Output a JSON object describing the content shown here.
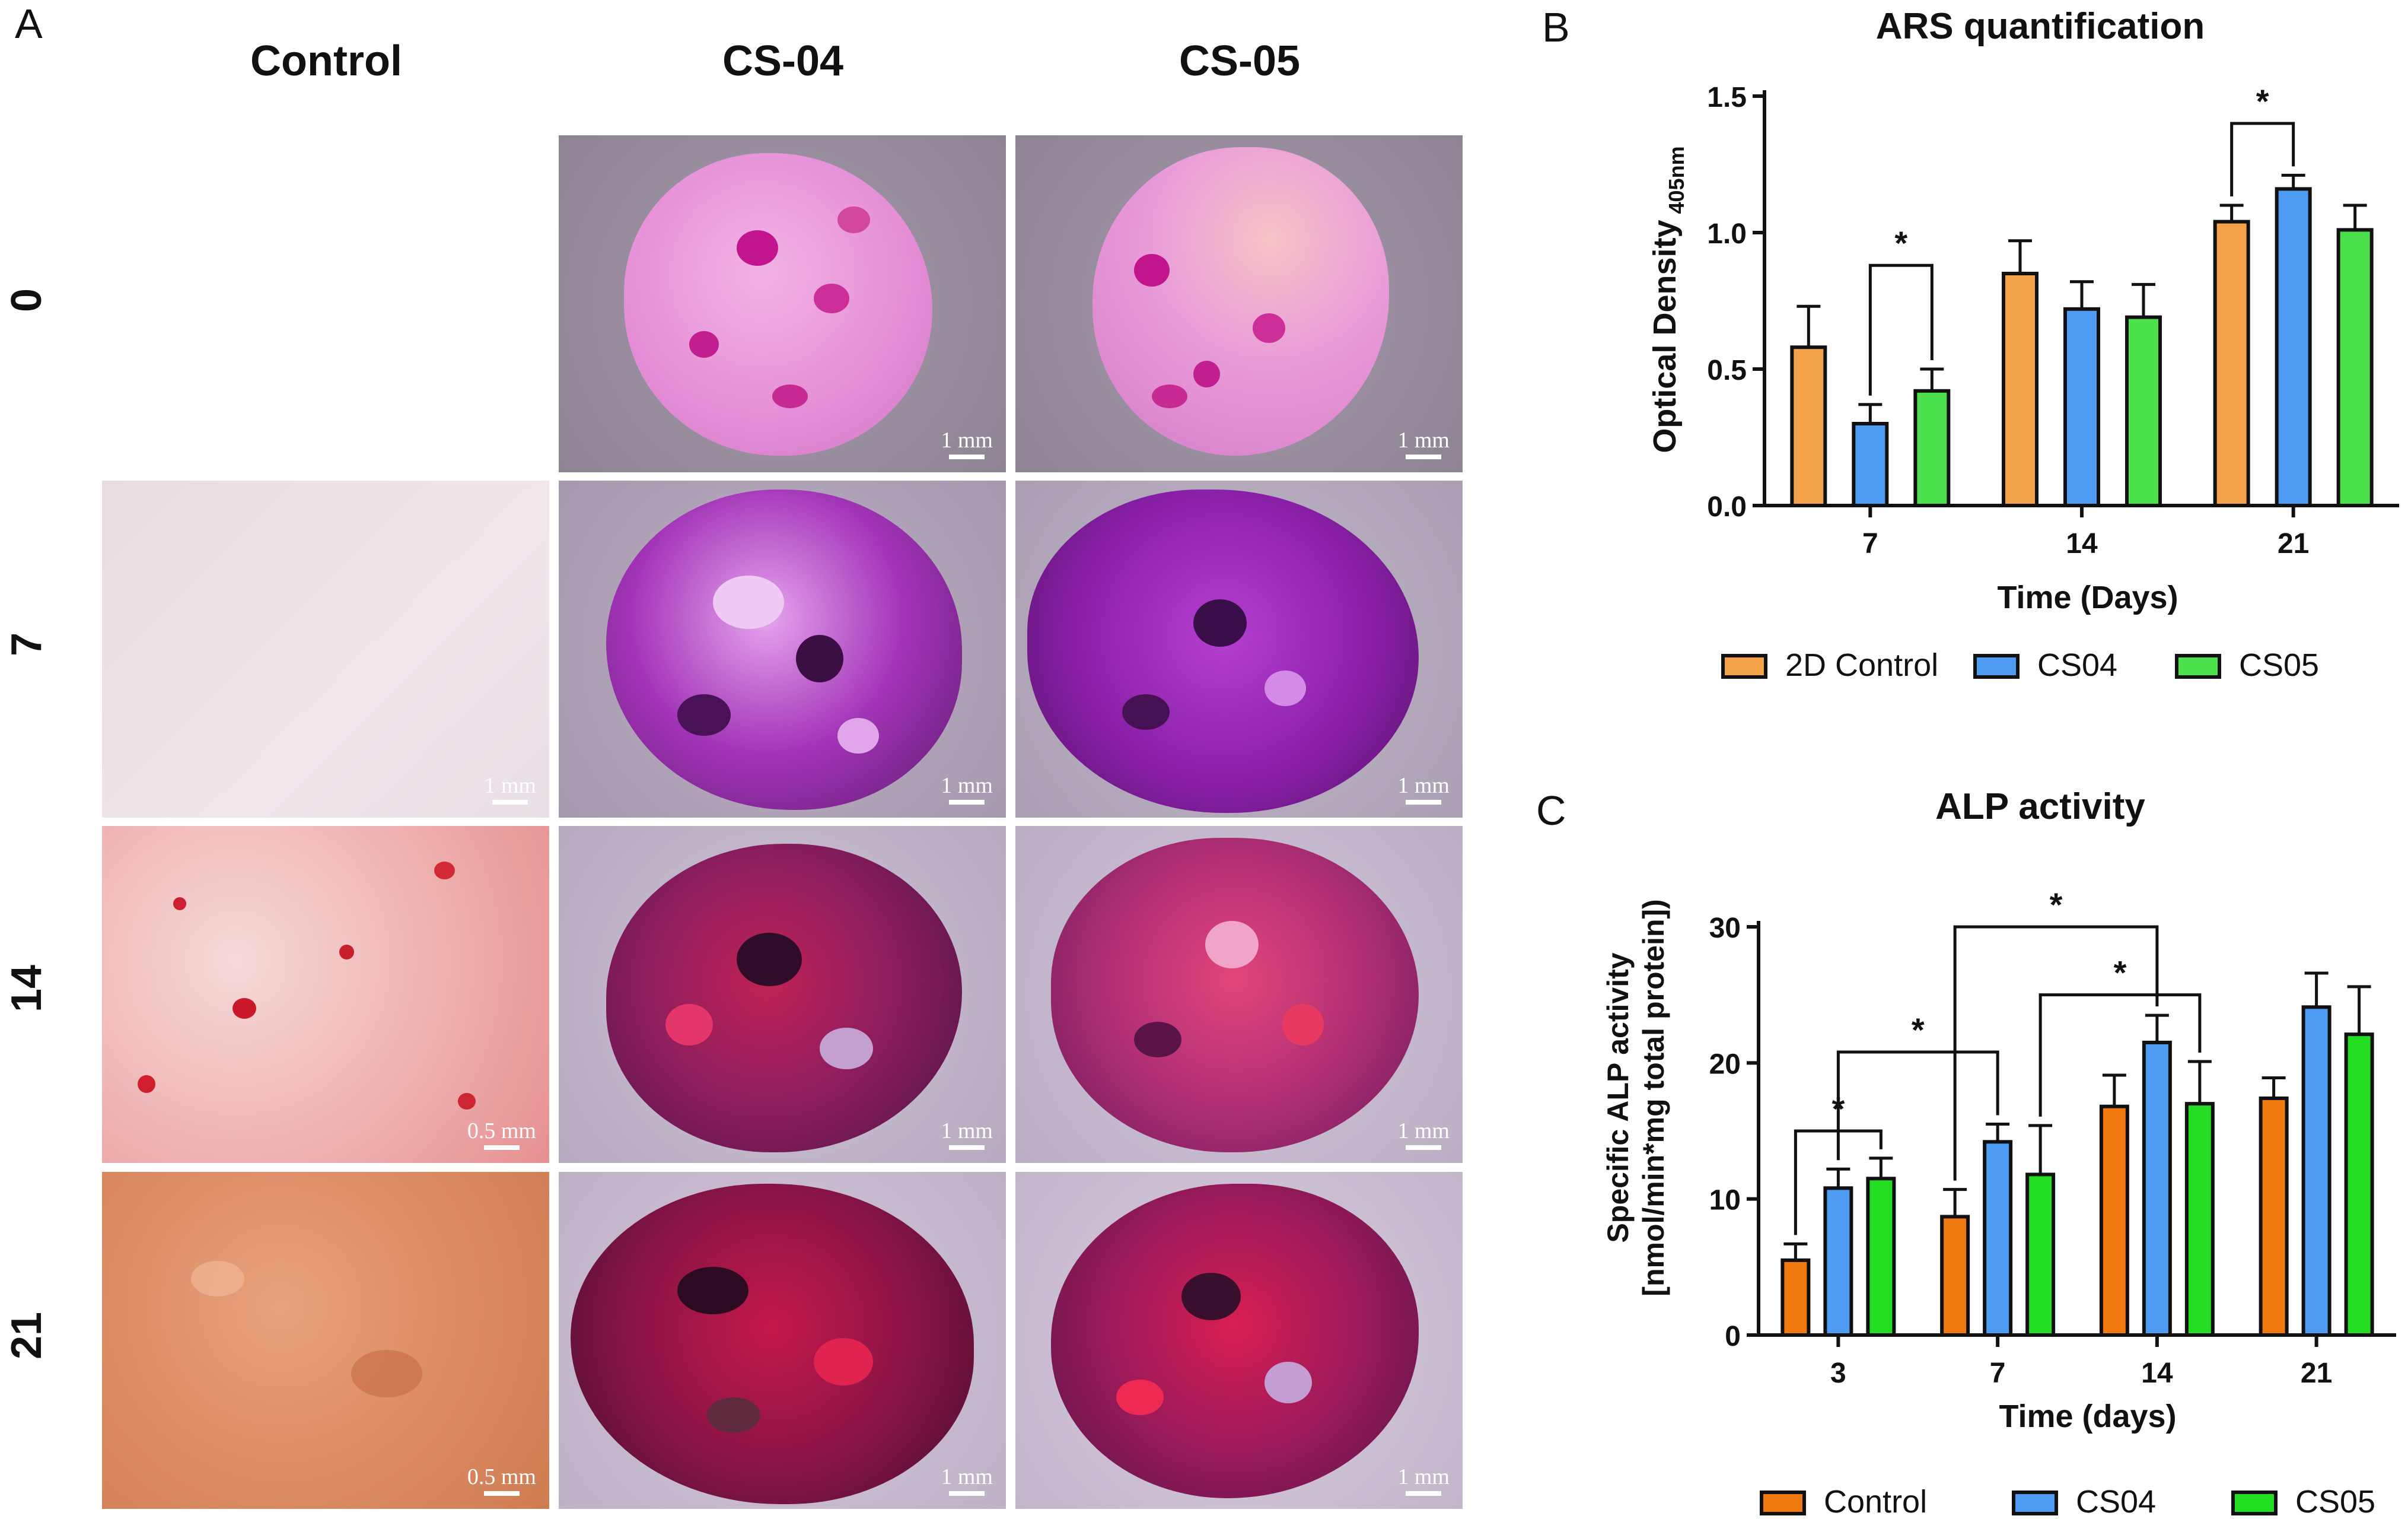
{
  "panel_a": {
    "letter": "A",
    "columns": [
      "Control",
      "CS-04",
      "CS-05"
    ],
    "rows": [
      "0",
      "7",
      "14",
      "21"
    ],
    "scale_labels": {
      "control": [
        "",
        "1 mm",
        "0.5 mm",
        "0.5 mm"
      ],
      "cs04": [
        "1 mm",
        "1 mm",
        "1 mm",
        "1 mm"
      ],
      "cs05": [
        "1 mm",
        "1 mm",
        "1 mm",
        "1 mm"
      ]
    }
  },
  "chart_data": [
    {
      "panel": "B",
      "type": "bar",
      "title": "ARS quantification",
      "xlabel": "Time (Days)",
      "ylabel": "Optical Density",
      "ylabel_sub": "405nm",
      "ylim": [
        0,
        1.5
      ],
      "yticks": [
        "0.0",
        "0.5",
        "1.0",
        "1.5"
      ],
      "categories": [
        "7",
        "14",
        "21"
      ],
      "series": [
        {
          "name": "2D Control",
          "color": "#F4A24A",
          "values": [
            0.58,
            0.85,
            1.04
          ],
          "errors": [
            0.15,
            0.12,
            0.06
          ]
        },
        {
          "name": "CS04",
          "color": "#4D9BF2",
          "values": [
            0.3,
            0.72,
            1.16
          ],
          "errors": [
            0.07,
            0.1,
            0.05
          ]
        },
        {
          "name": "CS05",
          "color": "#4CE04C",
          "values": [
            0.42,
            0.69,
            1.01
          ],
          "errors": [
            0.08,
            0.12,
            0.09
          ]
        }
      ],
      "significance": [
        {
          "category": 0,
          "from": 1,
          "to": 2,
          "label": "*",
          "y": 0.88
        },
        {
          "category": 2,
          "from": 0,
          "to": 1,
          "label": "*",
          "y": 1.4
        }
      ]
    },
    {
      "panel": "C",
      "type": "bar",
      "title": "ALP activity",
      "xlabel": "Time (days)",
      "ylabel": "Specific ALP activity",
      "ylabel2": "[nmol/min*mg total protein])",
      "ylim": [
        0,
        30
      ],
      "yticks": [
        "0",
        "10",
        "20",
        "30"
      ],
      "categories": [
        "3",
        "7",
        "14",
        "21"
      ],
      "series": [
        {
          "name": "Control",
          "color": "#F07A10",
          "values": [
            5.5,
            8.7,
            16.8,
            17.4
          ],
          "errors": [
            1.2,
            2.0,
            2.3,
            1.5
          ]
        },
        {
          "name": "CS04",
          "color": "#4D9BF2",
          "values": [
            10.8,
            14.2,
            21.5,
            24.1
          ],
          "errors": [
            1.4,
            1.3,
            2.0,
            2.5
          ]
        },
        {
          "name": "CS05",
          "color": "#22DD22",
          "values": [
            11.5,
            11.8,
            17.0,
            22.1
          ],
          "errors": [
            1.5,
            3.6,
            3.1,
            3.5
          ]
        }
      ],
      "significance": [
        {
          "from_cat": 0,
          "from_s": 0,
          "to_cat": 0,
          "to_s": 2,
          "y": 15.0,
          "label": "*"
        },
        {
          "from_cat": 0,
          "from_s": 1,
          "to_cat": 1,
          "to_s": 1,
          "y": 20.8,
          "label": "*"
        },
        {
          "from_cat": 1,
          "from_s": 2,
          "to_cat": 2,
          "to_s": 2,
          "y": 25.0,
          "label": "*"
        },
        {
          "from_cat": 1,
          "from_s": 0,
          "to_cat": 2,
          "to_s": 1,
          "y": 30.0,
          "label": "*"
        }
      ]
    }
  ]
}
